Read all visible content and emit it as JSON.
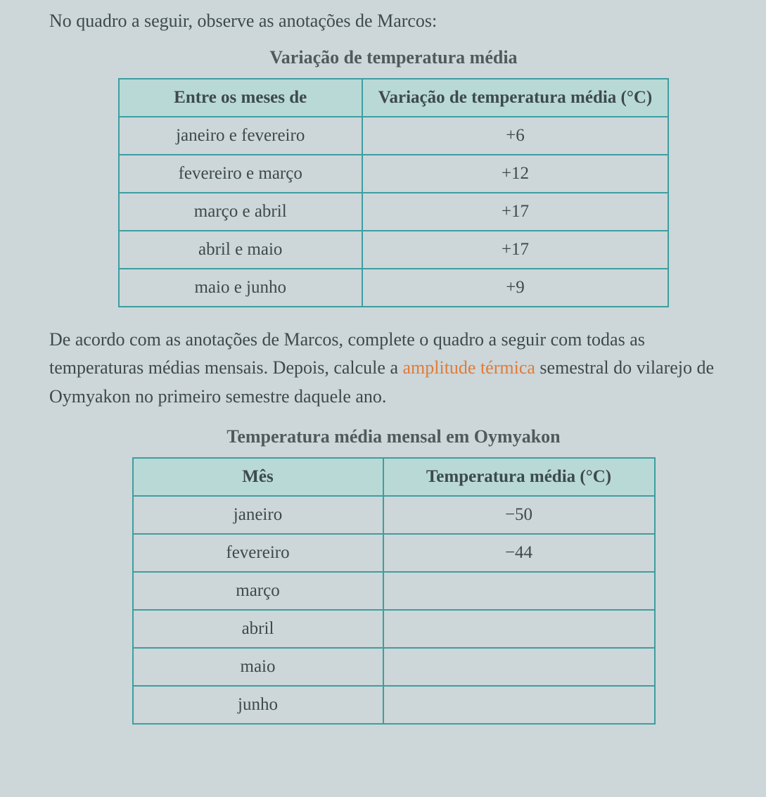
{
  "colors": {
    "page_background": "#cdd6d8",
    "text": "#3d4a4c",
    "table_border": "#3d9ea1",
    "header_fill": "#b9d9d6",
    "highlight": "#e07b3a"
  },
  "typography": {
    "body_fontsize_pt": 20,
    "title_fontsize_pt": 20,
    "font_family": "serif"
  },
  "intro_text": "No quadro a seguir, observe as anotações de Marcos:",
  "table1": {
    "type": "table",
    "title": "Variação de temperatura média",
    "columns": [
      "Entre os meses de",
      "Variação de temperatura média (°C)"
    ],
    "rows": [
      {
        "label": "janeiro e fevereiro",
        "value": "+6"
      },
      {
        "label": "fevereiro e março",
        "value": "+12"
      },
      {
        "label": "março e abril",
        "value": "+17"
      },
      {
        "label": "abril e maio",
        "value": "+17"
      },
      {
        "label": "maio e junho",
        "value": "+9"
      }
    ],
    "border_color": "#3d9ea1",
    "header_fill": "#b9d9d6",
    "col_align": [
      "center",
      "center"
    ]
  },
  "mid_paragraph": {
    "pre": "De acordo com as anotações de Marcos, complete o quadro a seguir com todas as temperaturas médias mensais. Depois, calcule a ",
    "highlight": "amplitude térmica",
    "post": " semestral do vilarejo de Oymyakon no primeiro semestre daquele ano."
  },
  "table2": {
    "type": "table",
    "title": "Temperatura média mensal em Oymyakon",
    "columns": [
      "Mês",
      "Temperatura média (°C)"
    ],
    "rows": [
      {
        "label": "janeiro",
        "value": "−50"
      },
      {
        "label": "fevereiro",
        "value": "−44"
      },
      {
        "label": "março",
        "value": ""
      },
      {
        "label": "abril",
        "value": ""
      },
      {
        "label": "maio",
        "value": ""
      },
      {
        "label": "junho",
        "value": ""
      }
    ],
    "border_color": "#3d9ea1",
    "header_fill": "#b9d9d6",
    "col_align": [
      "center",
      "center"
    ]
  }
}
